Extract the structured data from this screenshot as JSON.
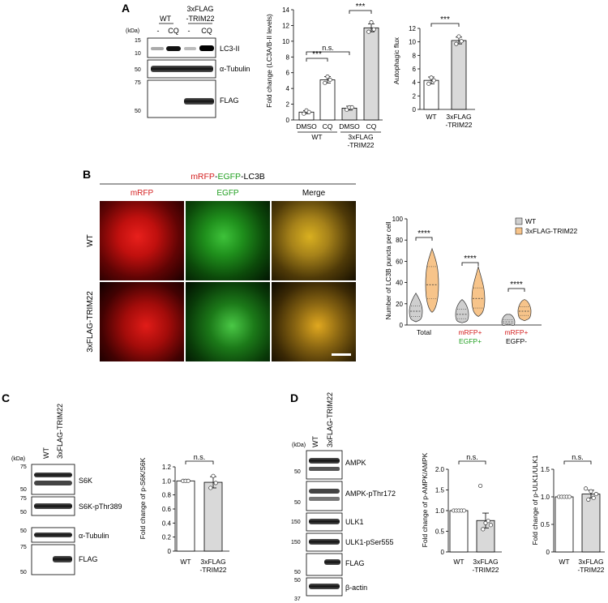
{
  "panels": {
    "A": "A",
    "B": "B",
    "C": "C",
    "D": "D"
  },
  "common": {
    "kda": "(kDa)",
    "minus": "-",
    "cq": "CQ",
    "wt": "WT",
    "flag_label": "3xFLAG-TRIM22",
    "sig3": "***",
    "sig4": "****",
    "ns": "n.s.",
    "trim_l1": "3xFLAG",
    "trim_l2": "-TRIM22"
  },
  "panelA": {
    "markers_top": [
      "15",
      "10"
    ],
    "markers_tub": [
      "50"
    ],
    "markers_flag": [
      "75",
      "50"
    ],
    "blots": [
      "LC3-II",
      "α-Tubulin",
      "FLAG"
    ],
    "col_headers": [
      "WT",
      "3xFLAG",
      "-TRIM22"
    ],
    "chart1_ylabel": "Fold change (LC3A/B-II levels)",
    "chart1_ticks": [
      "0",
      "2",
      "4",
      "6",
      "8",
      "10",
      "12",
      "14"
    ],
    "chart1_xcats": [
      "DMSO",
      "CQ",
      "DMSO",
      "CQ"
    ],
    "chart2_ylabel": "Autophagic flux",
    "chart2_ticks": [
      "0",
      "2",
      "4",
      "6",
      "8",
      "10",
      "12"
    ]
  },
  "panelB": {
    "title_parts": [
      "mRFP",
      "-",
      "EGFP",
      "-LC3B"
    ],
    "col_labels": [
      "mRFP",
      "EGFP",
      "Merge"
    ],
    "row_labels": [
      "WT",
      "3xFLAG-TRIM22"
    ],
    "ylabel": "Number of LC3B puncta per cell",
    "yticks": [
      "0",
      "20",
      "40",
      "60",
      "80",
      "100"
    ],
    "legend": [
      "WT",
      "3xFLAG-TRIM22"
    ],
    "xcats": [
      "Total",
      "mRFP+",
      "EGFP+",
      "mRFP+",
      "EGFP-"
    ]
  },
  "panelC": {
    "markers": [
      "75",
      "50",
      "75",
      "50",
      "50",
      "75",
      "50"
    ],
    "blots": [
      "S6K",
      "S6K-pThr389",
      "α-Tubulin",
      "FLAG"
    ],
    "ylabel": "Fold change of p-S6K/S6K",
    "yticks": [
      "0",
      "0.2",
      "0.4",
      "0.6",
      "0.8",
      "1.0",
      "1.2"
    ]
  },
  "panelD": {
    "markers": [
      "50",
      "50",
      "150",
      "150",
      "50",
      "50",
      "37"
    ],
    "blots": [
      "AMPK",
      "AMPK-pThr172",
      "ULK1",
      "ULK1-pSer555",
      "FLAG",
      "β-actin"
    ],
    "chart1_ylabel": "Fold change of  p-AMPK/AMPK",
    "chart1_ticks": [
      "0",
      "0.5",
      "1.0",
      "1.5",
      "2.0"
    ],
    "chart2_ylabel": "Fold change of  p-ULK1/ULK1",
    "chart2_ticks": [
      "0",
      "0.5",
      "1.0",
      "1.5"
    ]
  },
  "chart_data": [
    {
      "type": "bar",
      "categories": [
        "WT DMSO",
        "WT CQ",
        "3xFLAG-TRIM22 DMSO",
        "3xFLAG-TRIM22 CQ"
      ],
      "values": [
        1.0,
        5.1,
        1.5,
        11.7
      ],
      "errors": [
        0.2,
        0.4,
        0.25,
        0.5
      ],
      "points": [
        [
          0.8,
          1.2,
          1.0
        ],
        [
          4.7,
          5.5,
          5.1
        ],
        [
          1.3,
          1.6,
          1.6
        ],
        [
          11.2,
          12.4,
          11.5
        ]
      ],
      "ylabel": "Fold change (LC3A/B-II levels)",
      "ylim": [
        0,
        14
      ],
      "colors": [
        "#ffffff",
        "#ffffff",
        "#d9d9d9",
        "#d9d9d9"
      ],
      "annotations": [
        {
          "pair": [
            "WT DMSO",
            "WT CQ"
          ],
          "label": "***"
        },
        {
          "pair": [
            "WT DMSO",
            "3xFLAG-TRIM22 DMSO"
          ],
          "label": "n.s."
        },
        {
          "pair": [
            "3xFLAG-TRIM22 DMSO",
            "3xFLAG-TRIM22 CQ"
          ],
          "label": "***"
        }
      ]
    },
    {
      "type": "bar",
      "categories": [
        "WT",
        "3xFLAG-TRIM22"
      ],
      "values": [
        4.3,
        10.2
      ],
      "errors": [
        0.5,
        0.5
      ],
      "points": [
        [
          3.8,
          4.7,
          4.3
        ],
        [
          9.7,
          10.8,
          10.1
        ]
      ],
      "ylabel": "Autophagic flux",
      "ylim": [
        0,
        12
      ],
      "colors": [
        "#ffffff",
        "#d9d9d9"
      ],
      "annotations": [
        {
          "pair": [
            "WT",
            "3xFLAG-TRIM22"
          ],
          "label": "***"
        }
      ]
    },
    {
      "type": "violin",
      "categories": [
        "Total",
        "mRFP+ EGFP+",
        "mRFP+ EGFP-"
      ],
      "series": [
        {
          "name": "WT",
          "color": "#cfcfcf",
          "median": [
            13,
            10,
            3
          ],
          "min": [
            3,
            2,
            0
          ],
          "max": [
            30,
            24,
            10
          ],
          "q1": [
            8,
            6,
            1
          ],
          "q3": [
            18,
            15,
            5
          ]
        },
        {
          "name": "3xFLAG-TRIM22",
          "color": "#f7c48a",
          "median": [
            38,
            25,
            13
          ],
          "min": [
            12,
            8,
            4
          ],
          "max": [
            72,
            55,
            24
          ],
          "q1": [
            25,
            16,
            9
          ],
          "q3": [
            55,
            35,
            17
          ]
        }
      ],
      "ylabel": "Number of LC3B puncta per cell",
      "ylim": [
        0,
        100
      ],
      "annotations": [
        "****",
        "****",
        "****"
      ]
    },
    {
      "type": "bar",
      "categories": [
        "WT",
        "3xFLAG-TRIM22"
      ],
      "values": [
        1.0,
        0.98
      ],
      "errors": [
        0,
        0.08
      ],
      "points": [
        [
          1.0,
          1.0,
          1.0
        ],
        [
          0.9,
          1.07,
          0.97
        ]
      ],
      "ylabel": "Fold change of p-S6K/S6K",
      "ylim": [
        0,
        1.2
      ],
      "colors": [
        "#ffffff",
        "#d9d9d9"
      ],
      "annotations": [
        {
          "pair": [
            "WT",
            "3xFLAG-TRIM22"
          ],
          "label": "n.s."
        }
      ]
    },
    {
      "type": "bar",
      "categories": [
        "WT",
        "3xFLAG-TRIM22"
      ],
      "values": [
        1.0,
        0.76
      ],
      "errors": [
        0,
        0.18
      ],
      "points": [
        [
          1,
          1,
          1,
          1,
          1
        ],
        [
          1.6,
          0.55,
          0.7,
          0.75,
          0.65
        ]
      ],
      "ylabel": "Fold change of  p-AMPK/AMPK",
      "ylim": [
        0,
        2.0
      ],
      "colors": [
        "#ffffff",
        "#d9d9d9"
      ],
      "annotations": [
        {
          "pair": [
            "WT",
            "3xFLAG-TRIM22"
          ],
          "label": "n.s."
        }
      ]
    },
    {
      "type": "bar",
      "categories": [
        "WT",
        "3xFLAG-TRIM22"
      ],
      "values": [
        1.0,
        1.05
      ],
      "errors": [
        0,
        0.07
      ],
      "points": [
        [
          1,
          1,
          1,
          1,
          1
        ],
        [
          1.15,
          0.95,
          1.1,
          0.98,
          1.05
        ]
      ],
      "ylabel": "Fold change of  p-ULK1/ULK1",
      "ylim": [
        0,
        1.5
      ],
      "colors": [
        "#ffffff",
        "#d9d9d9"
      ],
      "annotations": [
        {
          "pair": [
            "WT",
            "3xFLAG-TRIM22"
          ],
          "label": "n.s."
        }
      ]
    }
  ]
}
